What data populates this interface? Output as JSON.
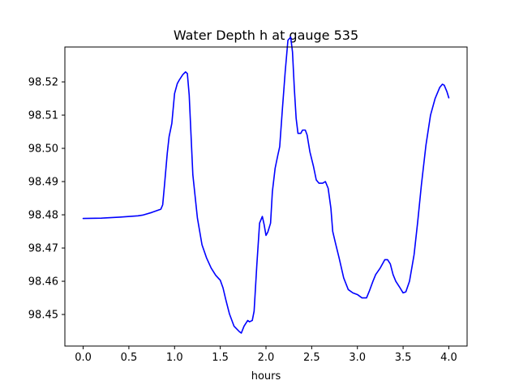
{
  "chart_data": {
    "type": "line",
    "title": "Water Depth h at gauge 535",
    "xlabel": "hours",
    "ylabel": "",
    "xlim": [
      -0.2,
      4.2
    ],
    "ylim": [
      98.4405,
      98.5305
    ],
    "x_ticks": [
      0.0,
      0.5,
      1.0,
      1.5,
      2.0,
      2.5,
      3.0,
      3.5,
      4.0
    ],
    "x_tick_labels": [
      "0.0",
      "0.5",
      "1.0",
      "1.5",
      "2.0",
      "2.5",
      "3.0",
      "3.5",
      "4.0"
    ],
    "y_ticks": [
      98.45,
      98.46,
      98.47,
      98.48,
      98.49,
      98.5,
      98.51,
      98.52
    ],
    "y_tick_labels": [
      "98.45",
      "98.46",
      "98.47",
      "98.48",
      "98.49",
      "98.50",
      "98.51",
      "98.52"
    ],
    "grid": false,
    "legend": "none",
    "line_color": "#0000ff",
    "series": [
      {
        "x": [
          0.0,
          0.2,
          0.4,
          0.6,
          0.65,
          0.75,
          0.85,
          0.87,
          0.89,
          0.92,
          0.94,
          0.97,
          1.0,
          1.03,
          1.05,
          1.09,
          1.12,
          1.14,
          1.16,
          1.2,
          1.25,
          1.3,
          1.35,
          1.4,
          1.45,
          1.5,
          1.53,
          1.56,
          1.6,
          1.65,
          1.71,
          1.73,
          1.76,
          1.8,
          1.82,
          1.85,
          1.87,
          1.9,
          1.93,
          1.96,
          1.98,
          2.0,
          2.02,
          2.05,
          2.07,
          2.1,
          2.13,
          2.15,
          2.18,
          2.21,
          2.24,
          2.27,
          2.29,
          2.31,
          2.33,
          2.35,
          2.38,
          2.4,
          2.43,
          2.45,
          2.48,
          2.52,
          2.55,
          2.58,
          2.62,
          2.65,
          2.68,
          2.71,
          2.73,
          2.76,
          2.8,
          2.85,
          2.9,
          2.95,
          3.0,
          3.05,
          3.1,
          3.13,
          3.17,
          3.2,
          3.25,
          3.28,
          3.3,
          3.33,
          3.36,
          3.39,
          3.42,
          3.46,
          3.5,
          3.53,
          3.57,
          3.62,
          3.66,
          3.7,
          3.75,
          3.8,
          3.85,
          3.9,
          3.93,
          3.95,
          3.98,
          4.0
        ],
        "y": [
          98.4789,
          98.479,
          98.4793,
          98.4797,
          98.4799,
          98.4807,
          98.4817,
          98.483,
          98.489,
          98.4985,
          98.5035,
          98.5075,
          98.5165,
          98.5195,
          98.5205,
          98.5222,
          98.523,
          98.5225,
          98.516,
          98.492,
          98.479,
          98.471,
          98.467,
          98.464,
          98.4618,
          98.4603,
          98.458,
          98.4545,
          98.4502,
          98.4465,
          98.4448,
          98.4444,
          98.4465,
          98.4482,
          98.4478,
          98.4482,
          98.451,
          98.465,
          98.4775,
          98.4795,
          98.477,
          98.4738,
          98.4748,
          98.4775,
          98.487,
          98.494,
          98.498,
          98.5005,
          98.512,
          98.523,
          98.5325,
          98.5335,
          98.529,
          98.518,
          98.509,
          98.5045,
          98.5045,
          98.5055,
          98.5055,
          98.504,
          98.499,
          98.4945,
          98.4905,
          98.4895,
          98.4895,
          98.49,
          98.488,
          98.482,
          98.475,
          98.4715,
          98.467,
          98.461,
          98.4575,
          98.4565,
          98.456,
          98.455,
          98.455,
          98.457,
          98.46,
          98.462,
          98.464,
          98.4655,
          98.4665,
          98.4665,
          98.4652,
          98.462,
          98.46,
          98.4583,
          98.4565,
          98.4568,
          98.46,
          98.468,
          98.478,
          98.489,
          98.501,
          98.51,
          98.515,
          98.5183,
          98.5193,
          98.519,
          98.517,
          98.5152
        ]
      }
    ]
  }
}
